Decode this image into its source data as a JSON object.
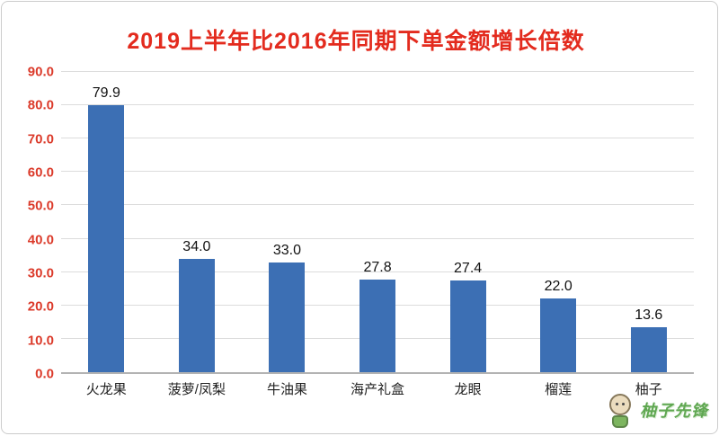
{
  "chart_data": {
    "type": "bar",
    "title": "2019上半年比2016年同期下单金额增长倍数",
    "categories": [
      "火龙果",
      "菠萝/凤梨",
      "牛油果",
      "海产礼盒",
      "龙眼",
      "榴莲",
      "柚子"
    ],
    "values": [
      79.9,
      34.0,
      33.0,
      27.8,
      27.4,
      22.0,
      13.6
    ],
    "xlabel": "",
    "ylabel": "",
    "ylim": [
      0,
      90
    ],
    "ytick_step": 10,
    "ytick_labels": [
      "0.0",
      "10.0",
      "20.0",
      "30.0",
      "40.0",
      "50.0",
      "60.0",
      "70.0",
      "80.0",
      "90.0"
    ],
    "grid": true,
    "legend": "none",
    "value_labels_shown": true
  },
  "colors": {
    "title": "#E32B1E",
    "ytick": "#DB3A2A",
    "bar": "#3C6FB4",
    "grid": "#DCDCDC"
  },
  "watermark": {
    "text": "柚子先锋"
  }
}
